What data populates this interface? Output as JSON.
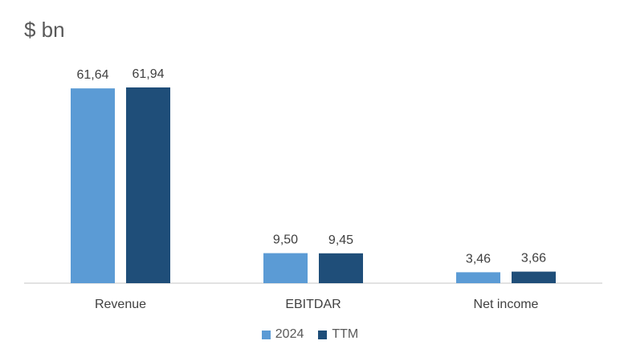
{
  "chart_data": {
    "type": "bar",
    "title": "$ bn",
    "categories": [
      "Revenue",
      "EBITDAR",
      "Net income"
    ],
    "series": [
      {
        "name": "2024",
        "color": "#5B9BD5",
        "values": [
          61.64,
          9.5,
          3.46
        ],
        "labels": [
          "61,64",
          "9,50",
          "3,46"
        ]
      },
      {
        "name": "TTM",
        "color": "#1F4E79",
        "values": [
          61.94,
          9.45,
          3.66
        ],
        "labels": [
          "61,94",
          "9,45",
          "3,66"
        ]
      }
    ],
    "ylim": [
      0,
      70
    ],
    "grid": false,
    "legend_position": "bottom"
  }
}
